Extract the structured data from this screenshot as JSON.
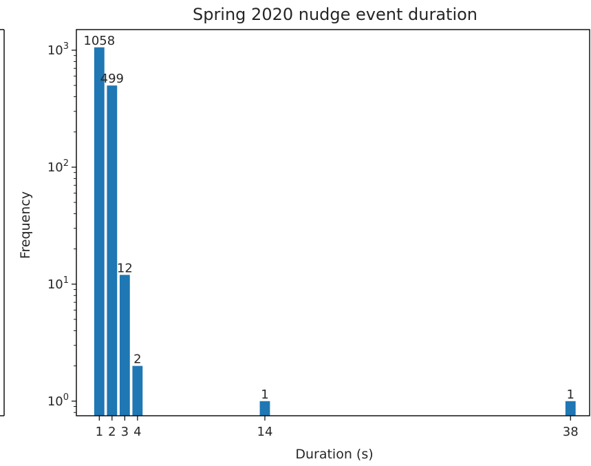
{
  "chart_data": {
    "type": "bar",
    "title": "Spring 2020 nudge event duration",
    "xlabel": "Duration (s)",
    "ylabel": "Frequency",
    "y_scale": "log",
    "ylim": [
      0.75,
      1500
    ],
    "xlim": [
      -0.8,
      39.5
    ],
    "categories": [
      "1",
      "2",
      "3",
      "4",
      "14",
      "38"
    ],
    "x": [
      1,
      2,
      3,
      4,
      14,
      38
    ],
    "values": [
      1058,
      499,
      12,
      2,
      1,
      1
    ],
    "x_ticks": [
      "1",
      "2",
      "3",
      "4",
      "14",
      "38"
    ],
    "y_ticks": [
      {
        "value": 1,
        "base": "10",
        "exp": "0"
      },
      {
        "value": 10,
        "base": "10",
        "exp": "1"
      },
      {
        "value": 100,
        "base": "10",
        "exp": "2"
      },
      {
        "value": 1000,
        "base": "10",
        "exp": "3"
      }
    ],
    "data_labels": [
      "1058",
      "499",
      "12",
      "2",
      "1",
      "1"
    ],
    "bar_color": "#1f77b4",
    "grid": false,
    "legend": "none"
  }
}
